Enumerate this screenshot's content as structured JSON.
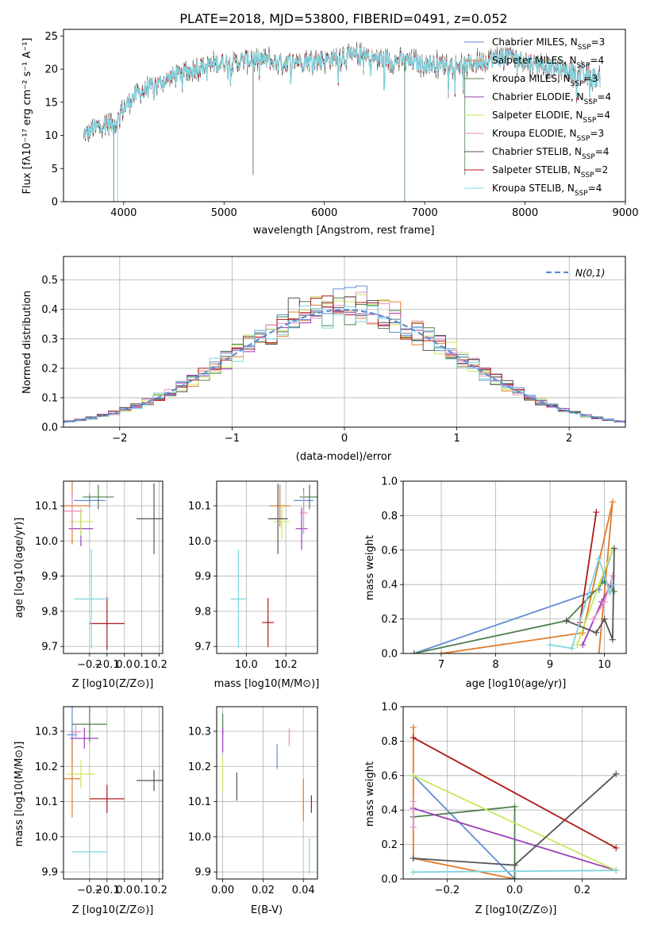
{
  "colors": [
    "#5f8dd3",
    "#e07b2a",
    "#4f7f4f",
    "#9b3fb5",
    "#c7e95a",
    "#e78fc4",
    "#555555",
    "#b01818",
    "#7fd4df"
  ],
  "chart_data": [
    {
      "id": "spectrum",
      "type": "line",
      "title": "PLATE=2018, MJD=53800, FIBERID=0491, z=0.052",
      "xlabel": "wavelength [Angstrom, rest frame]",
      "ylabel": "Flux [fλ10⁻¹⁷ erg cm⁻² s⁻¹ A⁻¹]",
      "xlim": [
        3400,
        9000
      ],
      "ylim": [
        0,
        26
      ],
      "xticks": [
        4000,
        5000,
        6000,
        7000,
        8000,
        9000
      ],
      "yticks": [
        0,
        5,
        10,
        15,
        20,
        25
      ],
      "grid": false,
      "legend_position": "top-right",
      "continuum": {
        "x": [
          3600,
          3700,
          3800,
          3900,
          4000,
          4100,
          4300,
          4500,
          4800,
          5000,
          5300,
          5600,
          6000,
          6300,
          6600,
          7000,
          7400,
          7800,
          8200,
          8600,
          8750
        ],
        "y": [
          10,
          11,
          12,
          11.5,
          14,
          16,
          17.5,
          19,
          20.5,
          21,
          21.5,
          21,
          21.5,
          22,
          21.5,
          20.8,
          20.5,
          22,
          20.5,
          19,
          18.5
        ]
      },
      "series": [
        {
          "name": "Chabrier MILES, N_SSP=3"
        },
        {
          "name": "Salpeter MILES, N_SSP=4"
        },
        {
          "name": "Kroupa MILES, N_SSP=3"
        },
        {
          "name": "Chabrier ELODIE, N_SSP=4"
        },
        {
          "name": "Salpeter ELODIE, N_SSP=4"
        },
        {
          "name": "Kroupa ELODIE, N_SSP=3"
        },
        {
          "name": "Chabrier STELIB, N_SSP=4"
        },
        {
          "name": "Salpeter STELIB, N_SSP=2"
        },
        {
          "name": "Kroupa STELIB, N_SSP=4"
        }
      ]
    },
    {
      "id": "residuals",
      "type": "bar",
      "xlabel": "(data-model)/error",
      "ylabel": "Normed distribution",
      "xlim": [
        -2.5,
        2.5
      ],
      "ylim": [
        0,
        0.58
      ],
      "xticks": [
        -2,
        -1,
        0,
        1,
        2
      ],
      "yticks": [
        0.0,
        0.1,
        0.2,
        0.3,
        0.4,
        0.5
      ],
      "grid": true,
      "legend_position": "top-right",
      "reference_curve": {
        "name": "N(0,1)",
        "mean": 0,
        "sigma": 1
      },
      "bin_edges_range": [
        -2.5,
        2.5
      ],
      "bin_width": 0.1,
      "note": "histograms of residuals per fit, one per series color"
    },
    {
      "id": "age_vs_Z",
      "type": "scatter",
      "xlabel": "Z [log10(Z/Z⊙)]",
      "ylabel": "age  [log10(age/yr)]",
      "xlim": [
        -0.35,
        0.22
      ],
      "ylim": [
        9.68,
        10.17
      ],
      "xticks": [
        -0.2,
        -0.1,
        0.0,
        0.1,
        0.2
      ],
      "yticks": [
        9.7,
        9.8,
        9.9,
        10.0,
        10.1
      ],
      "grid": true,
      "points": [
        {
          "c": 0,
          "x": -0.2,
          "y": 10.115,
          "xerr": 0.09,
          "yerr": 0.02
        },
        {
          "c": 1,
          "x": -0.3,
          "y": 10.1,
          "xerr": 0.1,
          "yerr": 0.11
        },
        {
          "c": 2,
          "x": -0.15,
          "y": 10.125,
          "xerr": 0.09,
          "yerr": 0.035
        },
        {
          "c": 3,
          "x": -0.25,
          "y": 10.035,
          "xerr": 0.07,
          "yerr": 0.05
        },
        {
          "c": 4,
          "x": -0.25,
          "y": 10.055,
          "xerr": 0.07,
          "yerr": 0.04
        },
        {
          "c": 5,
          "x": -0.3,
          "y": 10.085,
          "xerr": 0.06,
          "yerr": 0.05
        },
        {
          "c": 6,
          "x": 0.17,
          "y": 10.063,
          "xerr": 0.1,
          "yerr": 0.1
        },
        {
          "c": 7,
          "x": -0.1,
          "y": 9.765,
          "xerr": 0.1,
          "yerr": 0.075
        },
        {
          "c": 8,
          "x": -0.19,
          "y": 9.835,
          "xerr": 0.1,
          "yerr": 0.14
        }
      ]
    },
    {
      "id": "age_vs_mass",
      "type": "scatter",
      "xlabel": "mass [log10(M/M⊙)]",
      "ylabel": "",
      "xlim": [
        9.85,
        10.36
      ],
      "ylim": [
        9.68,
        10.17
      ],
      "xticks": [
        10.0,
        10.2
      ],
      "yticks": [
        9.7,
        9.8,
        9.9,
        10.0,
        10.1
      ],
      "grid": true,
      "points": [
        {
          "c": 0,
          "x": 10.29,
          "y": 10.115,
          "xerr": 0.05,
          "yerr": 0.035
        },
        {
          "c": 1,
          "x": 10.17,
          "y": 10.1,
          "xerr": 0.05,
          "yerr": 0.06
        },
        {
          "c": 2,
          "x": 10.32,
          "y": 10.125,
          "xerr": 0.05,
          "yerr": 0.035
        },
        {
          "c": 3,
          "x": 10.28,
          "y": 10.035,
          "xerr": 0.03,
          "yerr": 0.06
        },
        {
          "c": 4,
          "x": 10.18,
          "y": 10.055,
          "xerr": 0.04,
          "yerr": 0.05
        },
        {
          "c": 5,
          "x": 10.29,
          "y": 10.08,
          "xerr": 0.02,
          "yerr": 0.06
        },
        {
          "c": 6,
          "x": 10.16,
          "y": 10.063,
          "xerr": 0.05,
          "yerr": 0.1
        },
        {
          "c": 7,
          "x": 10.11,
          "y": 9.768,
          "xerr": 0.03,
          "yerr": 0.07
        },
        {
          "c": 8,
          "x": 9.96,
          "y": 9.835,
          "xerr": 0.04,
          "yerr": 0.14
        }
      ]
    },
    {
      "id": "massweight_vs_age",
      "type": "line",
      "xlabel": "age  [log10(age/yr)]",
      "ylabel": "mass weight",
      "xlim": [
        6.3,
        10.4
      ],
      "ylim": [
        0,
        1.0
      ],
      "xticks": [
        7,
        8,
        9,
        10
      ],
      "yticks": [
        0.0,
        0.2,
        0.4,
        0.6,
        0.8,
        1.0
      ],
      "grid": true,
      "series": [
        {
          "c": 0,
          "x": [
            6.5,
            9.9,
            10.15
          ],
          "y": [
            0.0,
            0.37,
            0.6
          ]
        },
        {
          "c": 1,
          "x": [
            7.0,
            9.6,
            10.15,
            9.9
          ],
          "y": [
            0.0,
            0.12,
            0.88,
            0.0
          ]
        },
        {
          "c": 2,
          "x": [
            6.5,
            9.3,
            10.0,
            10.18
          ],
          "y": [
            0.0,
            0.19,
            0.42,
            0.36
          ]
        },
        {
          "c": 3,
          "x": [
            9.6,
            9.95,
            10.12
          ],
          "y": [
            0.05,
            0.3,
            0.4
          ]
        },
        {
          "c": 4,
          "x": [
            9.5,
            9.9,
            10.15
          ],
          "y": [
            0.05,
            0.4,
            0.6
          ]
        },
        {
          "c": 5,
          "x": [
            9.8,
            10.0,
            10.15
          ],
          "y": [
            0.2,
            0.3,
            0.45
          ]
        },
        {
          "c": 6,
          "x": [
            9.3,
            9.85,
            10.0,
            10.15,
            10.18
          ],
          "y": [
            0.19,
            0.12,
            0.2,
            0.08,
            0.61
          ]
        },
        {
          "c": 7,
          "x": [
            9.55,
            9.85
          ],
          "y": [
            0.18,
            0.82
          ]
        },
        {
          "c": 8,
          "x": [
            9.0,
            9.4,
            9.9,
            10.1,
            10.15
          ],
          "y": [
            0.05,
            0.03,
            0.55,
            0.35,
            0.4
          ]
        }
      ]
    },
    {
      "id": "mass_vs_Z",
      "type": "scatter",
      "xlabel": "Z [log10(Z/Z⊙)]",
      "ylabel": "mass [log10(M/M⊙)]",
      "xlim": [
        -0.35,
        0.22
      ],
      "ylim": [
        9.88,
        10.37
      ],
      "xticks": [
        -0.2,
        -0.1,
        0.0,
        0.1,
        0.2
      ],
      "yticks": [
        9.9,
        10.0,
        10.1,
        10.2,
        10.3
      ],
      "grid": true,
      "points": [
        {
          "c": 0,
          "x": -0.3,
          "y": 10.29,
          "xerr": 0.03,
          "yerr": 0.08
        },
        {
          "c": 1,
          "x": -0.3,
          "y": 10.165,
          "xerr": 0.05,
          "yerr": 0.11
        },
        {
          "c": 2,
          "x": -0.2,
          "y": 10.32,
          "xerr": 0.1,
          "yerr": 0.05
        },
        {
          "c": 3,
          "x": -0.23,
          "y": 10.28,
          "xerr": 0.08,
          "yerr": 0.03
        },
        {
          "c": 4,
          "x": -0.25,
          "y": 10.178,
          "xerr": 0.08,
          "yerr": 0.04
        },
        {
          "c": 5,
          "x": -0.28,
          "y": 10.298,
          "xerr": 0.03,
          "yerr": 0.02
        },
        {
          "c": 6,
          "x": 0.17,
          "y": 10.16,
          "xerr": 0.1,
          "yerr": 0.03
        },
        {
          "c": 7,
          "x": -0.1,
          "y": 10.108,
          "xerr": 0.1,
          "yerr": 0.04
        },
        {
          "c": 8,
          "x": -0.2,
          "y": 9.957,
          "xerr": 0.1,
          "yerr": 0.04
        }
      ]
    },
    {
      "id": "mass_vs_ebv",
      "type": "scatter",
      "xlabel": "E(B-V)",
      "ylabel": "",
      "xlim": [
        -0.003,
        0.047
      ],
      "ylim": [
        9.88,
        10.37
      ],
      "xticks": [
        0.0,
        0.02,
        0.04
      ],
      "yticks": [
        9.9,
        10.0,
        10.1,
        10.2,
        10.3
      ],
      "grid": true,
      "points": [
        {
          "c": 0,
          "x": 0.027,
          "y": 10.228,
          "xerr": 0,
          "yerr": 0.035
        },
        {
          "c": 1,
          "x": 0.04,
          "y": 10.105,
          "xerr": 0,
          "yerr": 0.06
        },
        {
          "c": 2,
          "x": 0.0,
          "y": 10.32,
          "xerr": 0,
          "yerr": 0.03
        },
        {
          "c": 3,
          "x": 0.0,
          "y": 10.275,
          "xerr": 0,
          "yerr": 0.035
        },
        {
          "c": 4,
          "x": 0.0,
          "y": 10.178,
          "xerr": 0,
          "yerr": 0.05
        },
        {
          "c": 5,
          "x": 0.033,
          "y": 10.283,
          "xerr": 0,
          "yerr": 0.025
        },
        {
          "c": 6,
          "x": 0.007,
          "y": 10.143,
          "xerr": 0,
          "yerr": 0.04
        },
        {
          "c": 7,
          "x": 0.044,
          "y": 10.093,
          "xerr": 0,
          "yerr": 0.025
        },
        {
          "c": 8,
          "x": 0.043,
          "y": 9.945,
          "xerr": 0,
          "yerr": 0.05
        }
      ]
    },
    {
      "id": "massweight_vs_Z",
      "type": "line",
      "xlabel": "Z [log10(Z/Z⊙)]",
      "ylabel": "mass weight",
      "xlim": [
        -0.33,
        0.33
      ],
      "ylim": [
        0,
        1.0
      ],
      "xticks": [
        -0.2,
        0.0,
        0.2
      ],
      "yticks": [
        0.0,
        0.2,
        0.4,
        0.6,
        0.8,
        1.0
      ],
      "grid": true,
      "series": [
        {
          "c": 0,
          "x": [
            -0.3,
            -0.3,
            0.0
          ],
          "y": [
            0.6,
            0.6,
            0.0
          ]
        },
        {
          "c": 1,
          "x": [
            -0.3,
            -0.3,
            0.0
          ],
          "y": [
            0.88,
            0.12,
            0.0
          ]
        },
        {
          "c": 2,
          "x": [
            -0.3,
            0.0,
            0.0
          ],
          "y": [
            0.36,
            0.42,
            0.0
          ]
        },
        {
          "c": 3,
          "x": [
            -0.3,
            0.3
          ],
          "y": [
            0.41,
            0.05
          ]
        },
        {
          "c": 4,
          "x": [
            -0.3,
            0.3
          ],
          "y": [
            0.6,
            0.05
          ]
        },
        {
          "c": 5,
          "x": [
            -0.3,
            -0.3
          ],
          "y": [
            0.3,
            0.45
          ]
        },
        {
          "c": 6,
          "x": [
            -0.3,
            0.0,
            0.3
          ],
          "y": [
            0.12,
            0.08,
            0.61
          ]
        },
        {
          "c": 7,
          "x": [
            -0.3,
            0.3
          ],
          "y": [
            0.82,
            0.18
          ]
        },
        {
          "c": 8,
          "x": [
            -0.3,
            0.3
          ],
          "y": [
            0.04,
            0.05
          ]
        }
      ]
    }
  ]
}
